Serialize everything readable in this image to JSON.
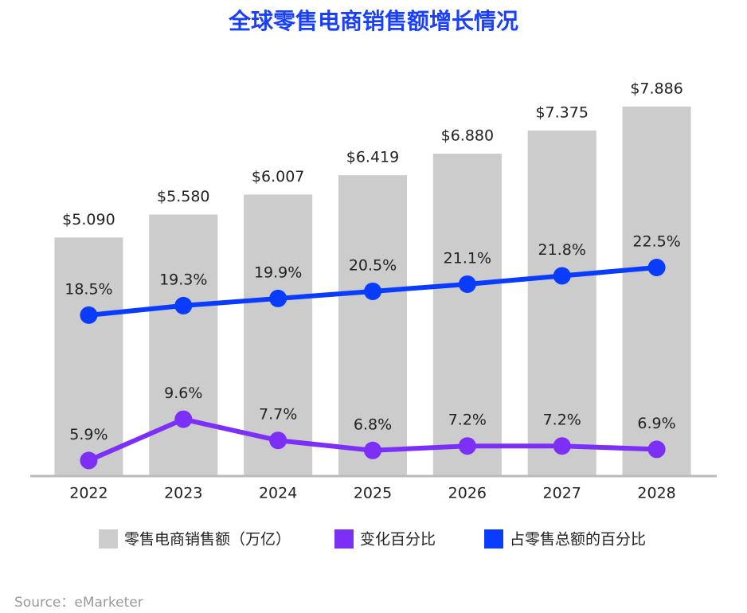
{
  "chart_data": {
    "type": "bar-line",
    "title": "全球零售电商销售额增长情况",
    "categories": [
      "2022",
      "2023",
      "2024",
      "2025",
      "2026",
      "2027",
      "2028"
    ],
    "ylim": [
      0,
      8.8
    ],
    "y2lim": [
      5,
      39.6
    ],
    "y3lim": [
      4.5,
      41.5
    ],
    "series": [
      {
        "name": "零售电商销售额（万亿）",
        "color": "#cccccc",
        "kind": "bar",
        "values": [
          5.09,
          5.58,
          6.007,
          6.419,
          6.88,
          7.375,
          7.886
        ],
        "value_labels": [
          "$5.090",
          "$5.580",
          "$6.007",
          "$6.419",
          "$6.880",
          "$7.375",
          "$7.886"
        ]
      },
      {
        "name": "变化百分比",
        "color": "#7b2ff7",
        "kind": "line",
        "axis": "y3",
        "values": [
          5.9,
          9.6,
          7.7,
          6.8,
          7.2,
          7.2,
          6.9
        ],
        "value_labels": [
          "5.9%",
          "9.6%",
          "7.7%",
          "6.8%",
          "7.2%",
          "7.2%",
          "6.9%"
        ]
      },
      {
        "name": "占零售总额的百分比",
        "color": "#0a3cff",
        "kind": "line",
        "axis": "y2",
        "values": [
          18.5,
          19.3,
          19.9,
          20.5,
          21.1,
          21.8,
          22.5
        ],
        "value_labels": [
          "18.5%",
          "19.3%",
          "19.9%",
          "20.5%",
          "21.1%",
          "21.8%",
          "22.5%"
        ]
      }
    ],
    "source": "Source：eMarketer"
  }
}
